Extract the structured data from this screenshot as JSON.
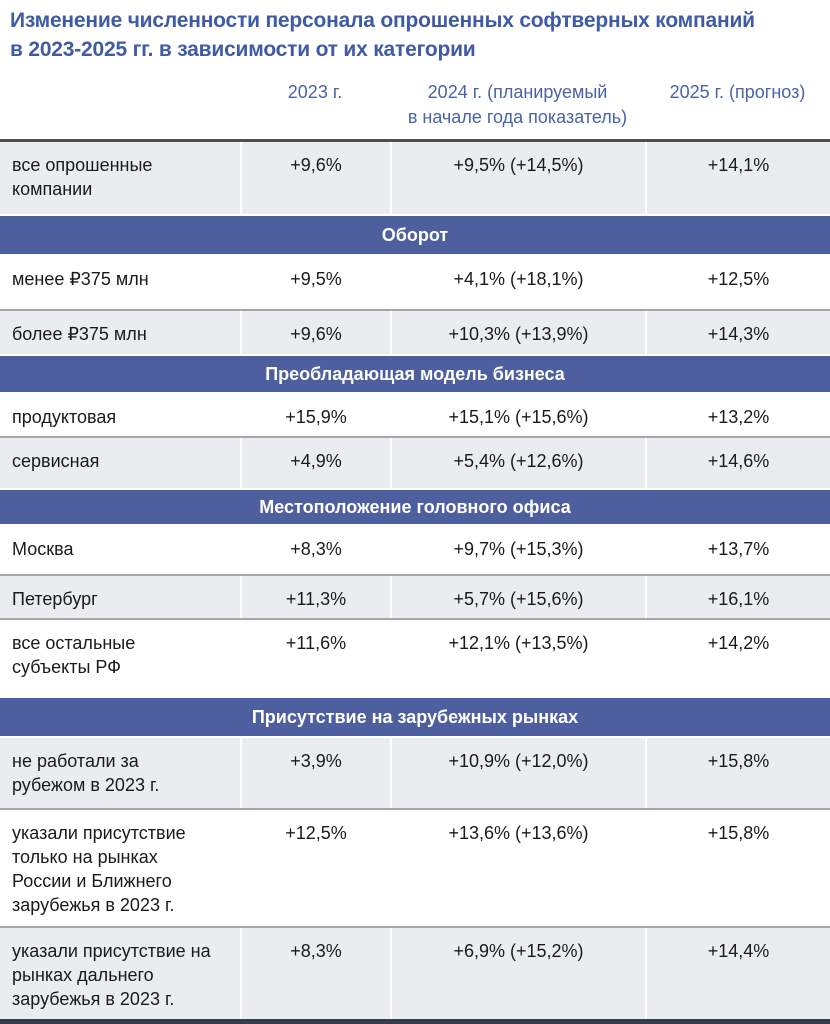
{
  "title": {
    "line1": "Изменение численности персонала опрошенных софтверных компаний",
    "line2": "в 2023-2025 гг. в зависимости от их категории"
  },
  "chart_data": {
    "type": "table",
    "title": "Изменение численности персонала опрошенных софтверных компаний в 2023-2025 гг. в зависимости от их категории",
    "column_headers": {
      "category": "",
      "y2023": "2023 г.",
      "y2024_line1": "2024 г. (планируемый",
      "y2024_line2": "в начале года показатель)",
      "y2025": "2025 г. (прогноз)"
    },
    "rows": [
      {
        "kind": "data",
        "category": "все опрошенные компании",
        "y2023": "+9,6%",
        "y2024": "+9,5% (+14,5%)",
        "y2025": "+14,1%"
      },
      {
        "kind": "section",
        "label": "Оборот"
      },
      {
        "kind": "data",
        "category": "менее ₽375 млн",
        "y2023": "+9,5%",
        "y2024": "+4,1% (+18,1%)",
        "y2025": "+12,5%"
      },
      {
        "kind": "data",
        "category": "более ₽375 млн",
        "y2023": "+9,6%",
        "y2024": "+10,3% (+13,9%)",
        "y2025": "+14,3%"
      },
      {
        "kind": "section",
        "label": "Преобладающая модель бизнеса"
      },
      {
        "kind": "data",
        "category": "продуктовая",
        "y2023": "+15,9%",
        "y2024": "+15,1% (+15,6%)",
        "y2025": "+13,2%"
      },
      {
        "kind": "data",
        "category": "сервисная",
        "y2023": "+4,9%",
        "y2024": "+5,4% (+12,6%)",
        "y2025": "+14,6%"
      },
      {
        "kind": "section",
        "label": "Местоположение головного офиса"
      },
      {
        "kind": "data",
        "category": "Москва",
        "y2023": "+8,3%",
        "y2024": "+9,7% (+15,3%)",
        "y2025": "+13,7%"
      },
      {
        "kind": "data",
        "category": "Петербург",
        "y2023": "+11,3%",
        "y2024": "+5,7% (+15,6%)",
        "y2025": "+16,1%"
      },
      {
        "kind": "data",
        "category": "все остальные субъекты РФ",
        "y2023": "+11,6%",
        "y2024": "+12,1% (+13,5%)",
        "y2025": "+14,2%"
      },
      {
        "kind": "section",
        "label": "Присутствие на зарубежных рынках"
      },
      {
        "kind": "data",
        "category": "не работали за рубежом в 2023 г.",
        "y2023": "+3,9%",
        "y2024": "+10,9% (+12,0%)",
        "y2025": "+15,8%"
      },
      {
        "kind": "data",
        "category": "указали присутствие только на рынках России и Ближнего зарубежья в 2023 г.",
        "y2023": "+12,5%",
        "y2024": "+13,6% (+13,6%)",
        "y2025": "+15,8%"
      },
      {
        "kind": "data",
        "category": "указали присутствие на рынках дальнего зарубежья в 2023 г.",
        "y2023": "+8,3%",
        "y2024": "+6,9% (+15,2%)",
        "y2025": "+14,4%"
      }
    ],
    "colors": {
      "title_text": "#3F5BA8",
      "column_header_text": "#4A63A8",
      "section_bg": "#4D5F9E",
      "section_text": "#FFFFFF",
      "row_alt_bg": "#EAECF0",
      "row_bg": "#FFFFFF",
      "divider": "#A6A6A6",
      "header_rule": "#4F4F4F",
      "bottom_bar": "#353C52"
    }
  }
}
